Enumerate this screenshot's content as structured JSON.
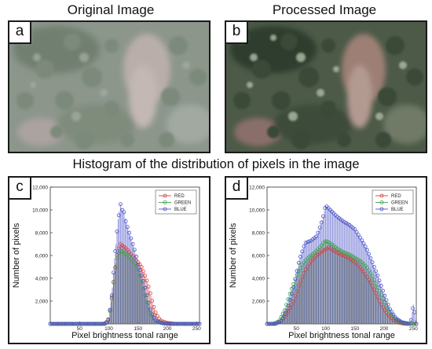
{
  "titles": {
    "original": "Original Image",
    "processed": "Processed Image",
    "histogram": "Histogram of the distribution of pixels in the image"
  },
  "panel_labels": [
    "a",
    "b",
    "c",
    "d"
  ],
  "colors": {
    "red": "#d0453f",
    "green": "#3fa34a",
    "blue": "#4b52c8",
    "frame": "#1a1a1a"
  },
  "chart_data": [
    {
      "panel": "c",
      "type": "bar",
      "xlabel": "Pixel brightness tonal range",
      "ylabel": "Number of pixels",
      "xlim": [
        0,
        255
      ],
      "ylim": [
        0,
        12000
      ],
      "xticks": [
        50,
        100,
        150,
        200,
        250
      ],
      "yticks": [
        2000,
        4000,
        6000,
        8000,
        10000,
        12000
      ],
      "ytick_labels": [
        "2,000",
        "4,000",
        "6,000",
        "8,000",
        "10,000",
        "12,000"
      ],
      "legend": [
        "RED",
        "GREEN",
        "BLUE"
      ],
      "legend_position": "top-right",
      "series": [
        {
          "name": "RED",
          "x": [
            0,
            90,
            95,
            100,
            105,
            110,
            115,
            120,
            125,
            130,
            135,
            140,
            145,
            150,
            155,
            160,
            165,
            170,
            175,
            180,
            185,
            190,
            200,
            210,
            220,
            255
          ],
          "values": [
            0,
            0,
            80,
            500,
            2300,
            4600,
            6400,
            7000,
            6800,
            6600,
            6300,
            6000,
            5700,
            5400,
            5100,
            4500,
            3800,
            2900,
            1800,
            1000,
            500,
            250,
            80,
            20,
            0,
            0
          ]
        },
        {
          "name": "GREEN",
          "x": [
            0,
            90,
            95,
            100,
            105,
            110,
            115,
            120,
            125,
            130,
            135,
            140,
            145,
            150,
            155,
            160,
            165,
            170,
            175,
            180,
            190,
            200,
            255
          ],
          "values": [
            0,
            0,
            60,
            400,
            2200,
            4600,
            6100,
            6400,
            6300,
            6100,
            5900,
            5600,
            5300,
            4800,
            3900,
            2900,
            1900,
            1100,
            600,
            300,
            80,
            0,
            0
          ]
        },
        {
          "name": "BLUE",
          "x": [
            0,
            95,
            100,
            105,
            108,
            112,
            116,
            120,
            123,
            126,
            129,
            132,
            135,
            138,
            141,
            144,
            147,
            150,
            155,
            160,
            165,
            170,
            175,
            180,
            190,
            200,
            255
          ],
          "values": [
            0,
            0,
            400,
            2500,
            4500,
            7000,
            9200,
            10500,
            10000,
            9800,
            9000,
            8500,
            8000,
            7500,
            7000,
            6500,
            5900,
            5200,
            4400,
            3600,
            2500,
            1400,
            700,
            300,
            60,
            0,
            0
          ]
        }
      ]
    },
    {
      "panel": "d",
      "type": "bar",
      "xlabel": "Pixel brightness tonal range",
      "ylabel": "Number of pixels",
      "xlim": [
        0,
        255
      ],
      "ylim": [
        0,
        12000
      ],
      "xticks": [
        50,
        100,
        150,
        200,
        250
      ],
      "yticks": [
        2000,
        4000,
        6000,
        8000,
        10000,
        12000
      ],
      "ytick_labels": [
        "2,000",
        "4,000",
        "6,000",
        "8,000",
        "10,000",
        "12,000"
      ],
      "legend": [
        "RED",
        "GREEN",
        "BLUE"
      ],
      "legend_position": "top-right",
      "series": [
        {
          "name": "RED",
          "x": [
            0,
            15,
            25,
            35,
            45,
            55,
            65,
            75,
            85,
            95,
            105,
            115,
            125,
            135,
            145,
            155,
            165,
            175,
            185,
            195,
            205,
            215,
            225,
            235,
            245,
            255
          ],
          "values": [
            0,
            0,
            300,
            1000,
            2000,
            3500,
            4700,
            5500,
            6000,
            6400,
            6700,
            6400,
            6100,
            5900,
            5600,
            5200,
            4600,
            3800,
            2800,
            1700,
            900,
            400,
            100,
            0,
            0,
            0
          ]
        },
        {
          "name": "GREEN",
          "x": [
            0,
            10,
            20,
            30,
            40,
            50,
            60,
            70,
            80,
            90,
            100,
            110,
            120,
            130,
            140,
            150,
            160,
            170,
            180,
            190,
            200,
            210,
            220,
            230,
            240,
            250,
            255
          ],
          "values": [
            0,
            0,
            200,
            1200,
            2800,
            4200,
            5200,
            5800,
            6200,
            6700,
            7300,
            7000,
            6600,
            6300,
            6100,
            5800,
            5500,
            5000,
            4200,
            3100,
            2000,
            1000,
            400,
            100,
            0,
            0,
            0
          ]
        },
        {
          "name": "BLUE",
          "x": [
            0,
            15,
            25,
            35,
            45,
            55,
            65,
            75,
            85,
            95,
            100,
            110,
            120,
            130,
            140,
            150,
            160,
            170,
            180,
            190,
            200,
            210,
            220,
            230,
            240,
            245,
            250,
            255
          ],
          "values": [
            0,
            0,
            300,
            1400,
            3200,
            5600,
            7100,
            7300,
            7700,
            9200,
            10400,
            9900,
            9400,
            9000,
            8700,
            8300,
            7500,
            6600,
            5400,
            4100,
            2600,
            1300,
            500,
            150,
            50,
            0,
            1700,
            0
          ]
        }
      ]
    }
  ]
}
